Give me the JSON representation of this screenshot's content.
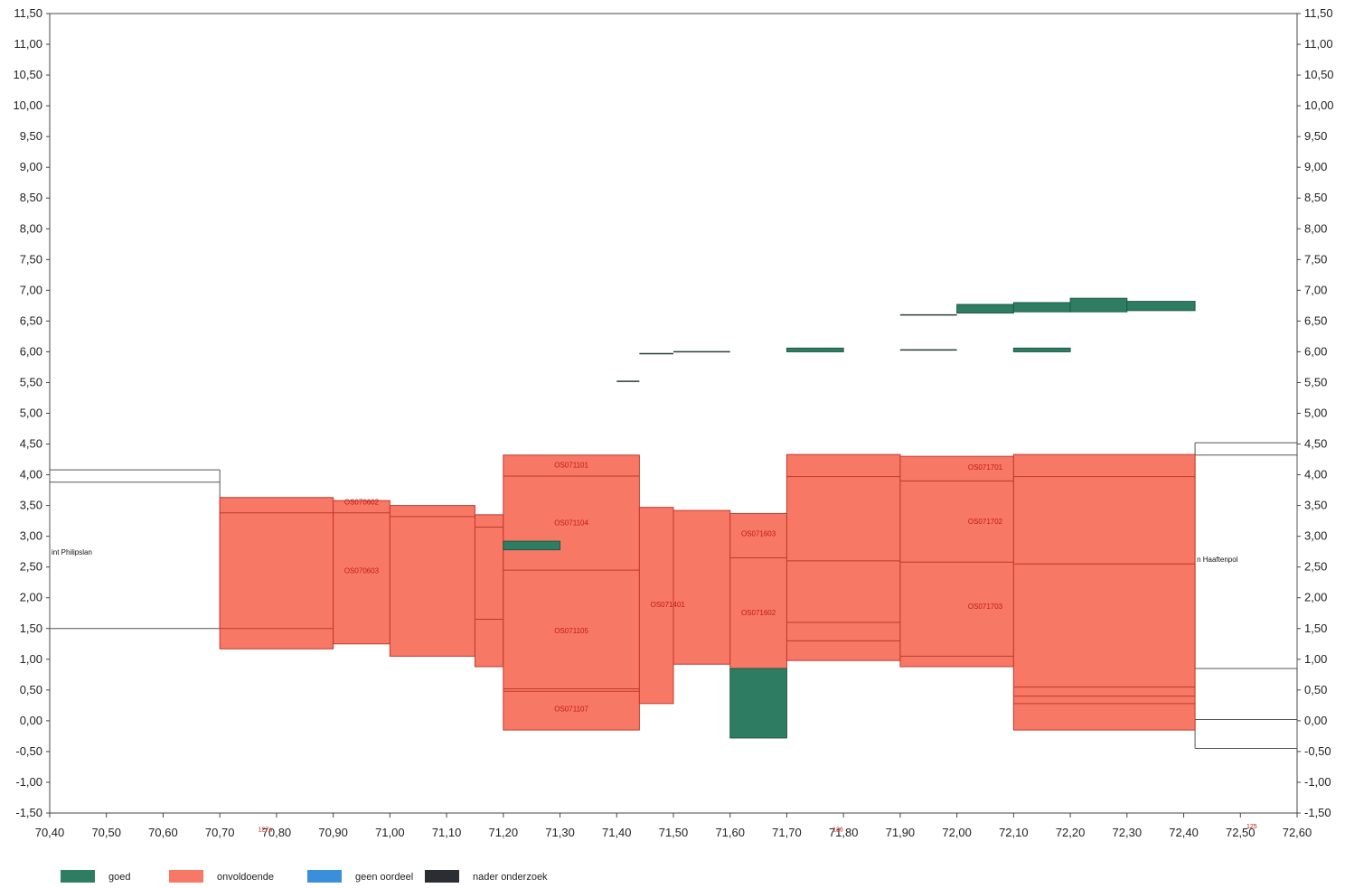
{
  "chart_data": {
    "type": "area",
    "xlabel": "",
    "ylabel": "",
    "xlim": [
      70.4,
      72.6
    ],
    "ylim": [
      -1.5,
      11.5
    ],
    "x_ticks": [
      "70,40",
      "70,50",
      "70,60",
      "70,70",
      "70,80",
      "70,90",
      "71,00",
      "71,10",
      "71,20",
      "71,30",
      "71,40",
      "71,50",
      "71,60",
      "71,70",
      "71,80",
      "71,90",
      "72,00",
      "72,10",
      "72,20",
      "72,30",
      "72,40",
      "72,50",
      "72,60"
    ],
    "y_ticks": [
      "11,50",
      "11,00",
      "10,50",
      "10,00",
      "9,50",
      "9,00",
      "8,50",
      "8,00",
      "7,50",
      "7,00",
      "6,50",
      "6,00",
      "5,50",
      "5,00",
      "4,50",
      "4,00",
      "3,50",
      "3,00",
      "2,50",
      "2,00",
      "1,50",
      "1,00",
      "0,50",
      "0,00",
      "-0,50",
      "-1,00",
      "-1,50"
    ],
    "colors": {
      "goed": "#2e7d62",
      "onvoldoende": "#f87866",
      "geen_oordeel": "#3a8fdc",
      "nader_onderzoek": "#2a2d33"
    },
    "legend": [
      {
        "key": "goed",
        "label": "goed",
        "color": "#2e7d62"
      },
      {
        "key": "onvoldoende",
        "label": "onvoldoende",
        "color": "#f87866"
      },
      {
        "key": "geen_oordeel",
        "label": "geen oordeel",
        "color": "#3a8fdc"
      },
      {
        "key": "nader_onderzoek",
        "label": "nader onderzoek",
        "color": "#2a2d33"
      }
    ],
    "columns": [
      {
        "x0": 70.7,
        "x1": 70.9,
        "top": 3.63,
        "bottom": 1.17,
        "lines": [
          3.38,
          1.5
        ],
        "status": "onvoldoende"
      },
      {
        "x0": 70.9,
        "x1": 71.0,
        "top": 3.58,
        "bottom": 1.25,
        "lines": [
          3.38
        ],
        "status": "onvoldoende"
      },
      {
        "x0": 71.0,
        "x1": 71.15,
        "top": 3.5,
        "bottom": 1.05,
        "lines": [
          3.32
        ],
        "status": "onvoldoende"
      },
      {
        "x0": 71.15,
        "x1": 71.2,
        "top": 3.35,
        "bottom": 0.88,
        "lines": [
          3.15,
          1.65
        ],
        "status": "onvoldoende"
      },
      {
        "x0": 71.2,
        "x1": 71.44,
        "top": 4.32,
        "bottom": -0.15,
        "lines": [
          3.98,
          2.45,
          0.52,
          0.48
        ],
        "status": "onvoldoende"
      },
      {
        "x0": 71.44,
        "x1": 71.5,
        "top": 3.47,
        "bottom": 0.28,
        "lines": [],
        "status": "onvoldoende"
      },
      {
        "x0": 71.5,
        "x1": 71.6,
        "top": 3.42,
        "bottom": 0.92,
        "lines": [],
        "status": "onvoldoende"
      },
      {
        "x0": 71.6,
        "x1": 71.7,
        "top": 3.37,
        "bottom": 0.85,
        "lines": [
          2.65
        ],
        "status": "onvoldoende"
      },
      {
        "x0": 71.7,
        "x1": 71.9,
        "top": 4.33,
        "bottom": 0.98,
        "lines": [
          3.97,
          2.6,
          1.6,
          1.3
        ],
        "status": "onvoldoende"
      },
      {
        "x0": 71.9,
        "x1": 72.1,
        "top": 4.3,
        "bottom": 0.88,
        "lines": [
          3.9,
          2.58,
          1.05
        ],
        "status": "onvoldoende"
      },
      {
        "x0": 72.1,
        "x1": 72.42,
        "top": 4.33,
        "bottom": -0.15,
        "lines": [
          3.97,
          2.55,
          0.55,
          0.4,
          0.28
        ],
        "status": "onvoldoende"
      }
    ],
    "good_blocks": [
      {
        "x0": 71.2,
        "x1": 71.3,
        "y0": 2.78,
        "y1": 2.92,
        "status": "goed"
      },
      {
        "x0": 71.6,
        "x1": 71.7,
        "y0": -0.28,
        "y1": 0.85,
        "status": "goed"
      },
      {
        "x0": 72.0,
        "x1": 72.1,
        "y0": 6.63,
        "y1": 6.77,
        "status": "goed"
      },
      {
        "x0": 72.1,
        "x1": 72.2,
        "y0": 6.65,
        "y1": 6.8,
        "status": "goed"
      },
      {
        "x0": 72.2,
        "x1": 72.3,
        "y0": 6.65,
        "y1": 6.87,
        "status": "goed"
      },
      {
        "x0": 72.3,
        "x1": 72.42,
        "y0": 6.67,
        "y1": 6.82,
        "status": "goed"
      },
      {
        "x0": 71.7,
        "x1": 71.8,
        "y0": 6.0,
        "y1": 6.06,
        "status": "goed"
      },
      {
        "x0": 72.1,
        "x1": 72.2,
        "y0": 6.0,
        "y1": 6.06,
        "status": "goed"
      }
    ],
    "thin_lines": [
      {
        "x0": 71.4,
        "x1": 71.44,
        "y": 5.52
      },
      {
        "x0": 71.44,
        "x1": 71.5,
        "y": 5.97
      },
      {
        "x0": 71.5,
        "x1": 71.6,
        "y": 6.0
      },
      {
        "x0": 71.9,
        "x1": 72.0,
        "y": 6.6
      },
      {
        "x0": 71.9,
        "x1": 72.0,
        "y": 6.03
      }
    ],
    "outlines": [
      {
        "x0": 70.4,
        "x1": 70.7,
        "top": 4.08,
        "mid": 3.88,
        "bottom": 1.5
      },
      {
        "x0": 72.42,
        "x1": 72.6,
        "top": 4.52,
        "mid": 4.32,
        "bottom": 0.85
      },
      {
        "x0": 72.42,
        "x1": 72.6,
        "top": 0.02,
        "mid": 0.02,
        "bottom": -0.45
      }
    ],
    "section_labels": [
      {
        "text": "OS070602",
        "x": 70.95,
        "y": 3.52
      },
      {
        "text": "OS070603",
        "x": 70.95,
        "y": 2.4
      },
      {
        "text": "OS071101",
        "x": 71.32,
        "y": 4.12
      },
      {
        "text": "OS071104",
        "x": 71.32,
        "y": 3.18
      },
      {
        "text": "OS071105",
        "x": 71.32,
        "y": 1.42
      },
      {
        "text": "OS071107",
        "x": 71.32,
        "y": 0.15
      },
      {
        "text": "OS071401",
        "x": 71.49,
        "y": 1.85
      },
      {
        "text": "OS071603",
        "x": 71.65,
        "y": 3.0
      },
      {
        "text": "OS071602",
        "x": 71.65,
        "y": 1.72
      },
      {
        "text": "OS071701",
        "x": 72.05,
        "y": 4.08
      },
      {
        "text": "OS071702",
        "x": 72.05,
        "y": 3.2
      },
      {
        "text": "OS071703",
        "x": 72.05,
        "y": 1.82
      }
    ],
    "side_labels": [
      {
        "text": "int Philipslan",
        "x": 70.4,
        "y": 2.7,
        "anchor": "start"
      },
      {
        "text": "n Haaftenpol",
        "x": 72.42,
        "y": 2.58,
        "anchor": "start"
      }
    ],
    "km_labels": [
      {
        "text": "127a",
        "x": 70.78,
        "y": -1.8
      },
      {
        "text": "126",
        "x": 71.79,
        "y": -1.8
      },
      {
        "text": "125",
        "x": 72.52,
        "y": -1.75
      }
    ]
  }
}
